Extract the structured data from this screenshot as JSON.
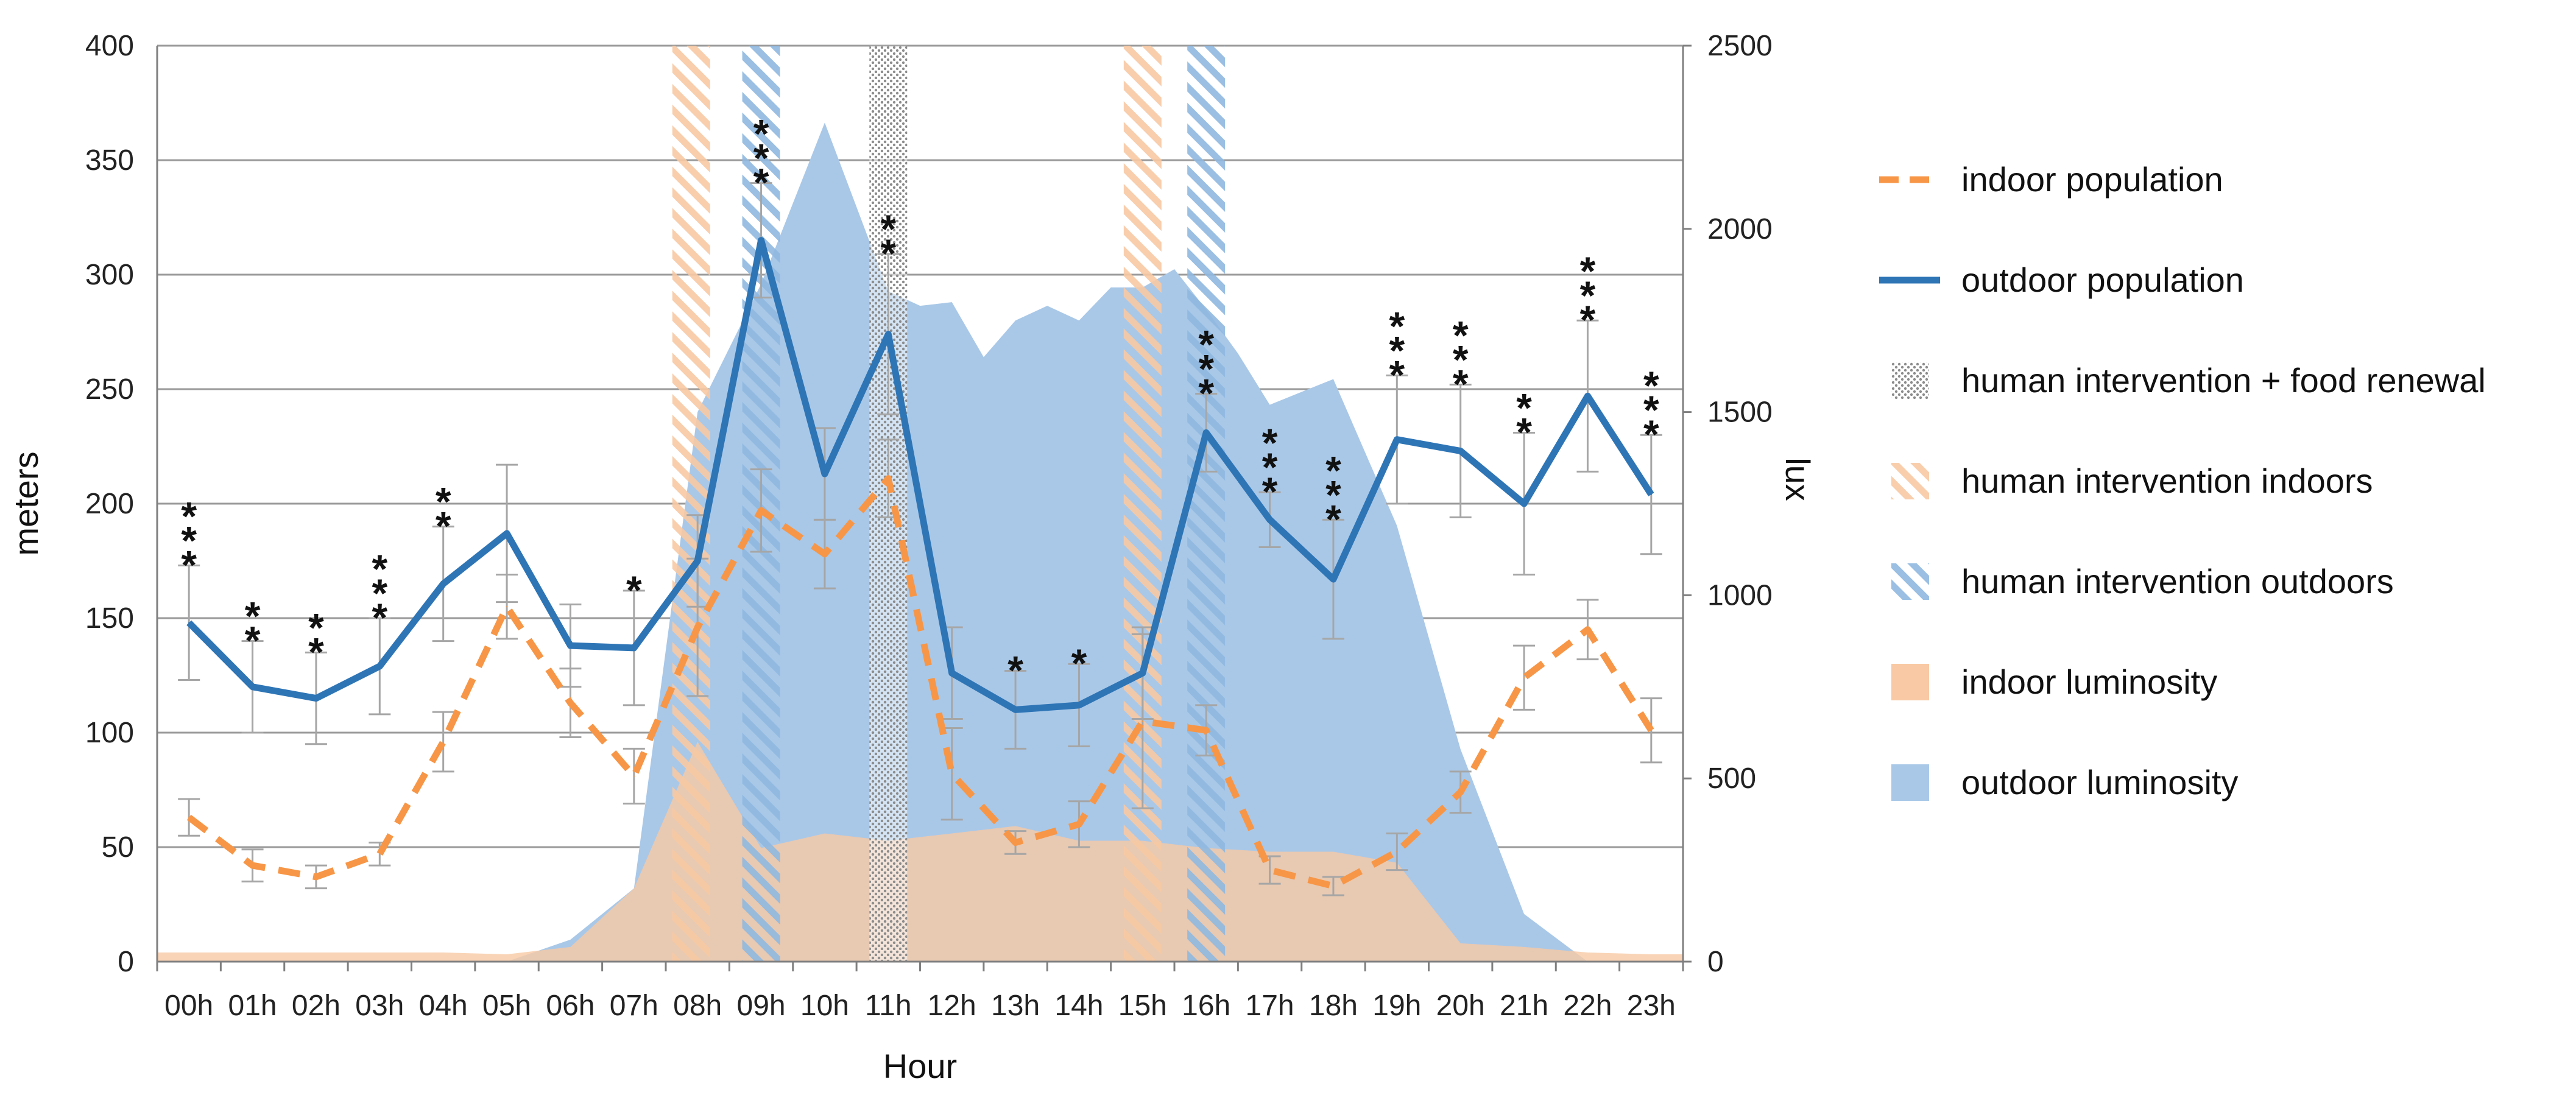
{
  "chart_data": {
    "type": "line",
    "x_title": "Hour",
    "y_left_title": "meters",
    "y_right_title": "lux",
    "y_left_lim": [
      0,
      400
    ],
    "y_left_ticks": [
      0,
      50,
      100,
      150,
      200,
      250,
      300,
      350,
      400
    ],
    "y_right_lim": [
      0,
      2500
    ],
    "y_right_ticks": [
      0,
      500,
      1000,
      1500,
      2000,
      2500
    ],
    "categories": [
      "00h",
      "01h",
      "02h",
      "03h",
      "04h",
      "05h",
      "06h",
      "07h",
      "08h",
      "09h",
      "10h",
      "11h",
      "12h",
      "13h",
      "14h",
      "15h",
      "16h",
      "17h",
      "18h",
      "19h",
      "20h",
      "21h",
      "22h",
      "23h"
    ],
    "series": [
      {
        "name": "indoor population",
        "axis": "left",
        "style": "dashed",
        "color": "#F79646",
        "values": [
          63,
          42,
          37,
          47,
          96,
          155,
          113,
          81,
          146,
          197,
          178,
          211,
          82,
          52,
          60,
          105,
          101,
          40,
          33,
          48,
          74,
          124,
          145,
          101
        ],
        "errors": [
          8,
          7,
          5,
          5,
          13,
          14,
          15,
          12,
          30,
          18,
          15,
          17,
          20,
          5,
          10,
          38,
          11,
          6,
          4,
          8,
          9,
          14,
          13,
          14
        ]
      },
      {
        "name": "outdoor population",
        "axis": "left",
        "style": "solid",
        "color": "#2E75B6",
        "values": [
          148,
          120,
          115,
          129,
          165,
          187,
          138,
          137,
          175,
          315,
          213,
          274,
          126,
          110,
          112,
          126,
          231,
          193,
          167,
          228,
          223,
          200,
          247,
          204
        ],
        "errors": [
          25,
          20,
          20,
          21,
          25,
          30,
          18,
          25,
          20,
          25,
          20,
          35,
          20,
          17,
          18,
          20,
          17,
          12,
          26,
          28,
          29,
          31,
          33,
          26
        ]
      }
    ],
    "areas": [
      {
        "name": "outdoor luminosity",
        "axis": "right",
        "color": "#A9C8E8",
        "values": [
          [
            0,
            0
          ],
          [
            5,
            0
          ],
          [
            6,
            60
          ],
          [
            7,
            200
          ],
          [
            8,
            1500
          ],
          [
            9,
            1850
          ],
          [
            10,
            2290
          ],
          [
            11,
            1830
          ],
          [
            11.5,
            1790
          ],
          [
            12,
            1800
          ],
          [
            12.5,
            1650
          ],
          [
            13,
            1750
          ],
          [
            13.5,
            1790
          ],
          [
            14,
            1750
          ],
          [
            14.5,
            1840
          ],
          [
            15,
            1840
          ],
          [
            15.5,
            1890
          ],
          [
            16,
            1780
          ],
          [
            16.5,
            1660
          ],
          [
            17,
            1520
          ],
          [
            18,
            1590
          ],
          [
            19,
            1190
          ],
          [
            20,
            580
          ],
          [
            21,
            130
          ],
          [
            22,
            0
          ],
          [
            23,
            0
          ]
        ]
      },
      {
        "name": "indoor luminosity",
        "axis": "right",
        "color": "#F8C9A4",
        "values": [
          [
            0,
            25
          ],
          [
            1,
            25
          ],
          [
            2,
            25
          ],
          [
            3,
            25
          ],
          [
            4,
            25
          ],
          [
            5,
            20
          ],
          [
            6,
            40
          ],
          [
            7,
            200
          ],
          [
            8,
            600
          ],
          [
            9,
            310
          ],
          [
            10,
            350
          ],
          [
            11,
            330
          ],
          [
            12,
            350
          ],
          [
            13,
            370
          ],
          [
            14,
            330
          ],
          [
            15,
            330
          ],
          [
            16,
            310
          ],
          [
            17,
            300
          ],
          [
            18,
            300
          ],
          [
            19,
            270
          ],
          [
            20,
            50
          ],
          [
            21,
            40
          ],
          [
            22,
            25
          ],
          [
            23,
            20
          ]
        ]
      }
    ],
    "interventions": [
      {
        "type": "human intervention indoors",
        "hour": 7.9
      },
      {
        "type": "human intervention outdoors",
        "hour": 9.0
      },
      {
        "type": "human intervention + food renewal",
        "hour": 11.0
      },
      {
        "type": "human intervention indoors",
        "hour": 15.0
      },
      {
        "type": "human intervention outdoors",
        "hour": 16.0
      }
    ],
    "significance": [
      {
        "hour": 0,
        "stars": 3
      },
      {
        "hour": 1,
        "stars": 2
      },
      {
        "hour": 2,
        "stars": 2
      },
      {
        "hour": 3,
        "stars": 3
      },
      {
        "hour": 4,
        "stars": 2
      },
      {
        "hour": 7,
        "stars": 1
      },
      {
        "hour": 9,
        "stars": 3
      },
      {
        "hour": 11,
        "stars": 2
      },
      {
        "hour": 13,
        "stars": 1
      },
      {
        "hour": 14,
        "stars": 1
      },
      {
        "hour": 16,
        "stars": 3
      },
      {
        "hour": 17,
        "stars": 3
      },
      {
        "hour": 18,
        "stars": 3
      },
      {
        "hour": 19,
        "stars": 3
      },
      {
        "hour": 20,
        "stars": 3
      },
      {
        "hour": 21,
        "stars": 2
      },
      {
        "hour": 22,
        "stars": 3
      },
      {
        "hour": 23,
        "stars": 3
      }
    ],
    "star_glyph": "*",
    "legend": [
      {
        "label": "indoor population",
        "kind": "dash-line",
        "color": "#F79646"
      },
      {
        "label": "outdoor population",
        "kind": "solid-line",
        "color": "#2E75B6"
      },
      {
        "label": "human intervention + food renewal",
        "kind": "dots",
        "color": "#7F7F7F"
      },
      {
        "label": "human intervention indoors",
        "kind": "hatch-orange",
        "color": "#F8C9A4"
      },
      {
        "label": "human intervention outdoors",
        "kind": "hatch-blue",
        "color": "#9DC3E6"
      },
      {
        "label": "indoor luminosity",
        "kind": "fill",
        "color": "#F8C9A4"
      },
      {
        "label": "outdoor luminosity",
        "kind": "fill",
        "color": "#A9C8E8"
      }
    ],
    "legend_position": "right"
  }
}
